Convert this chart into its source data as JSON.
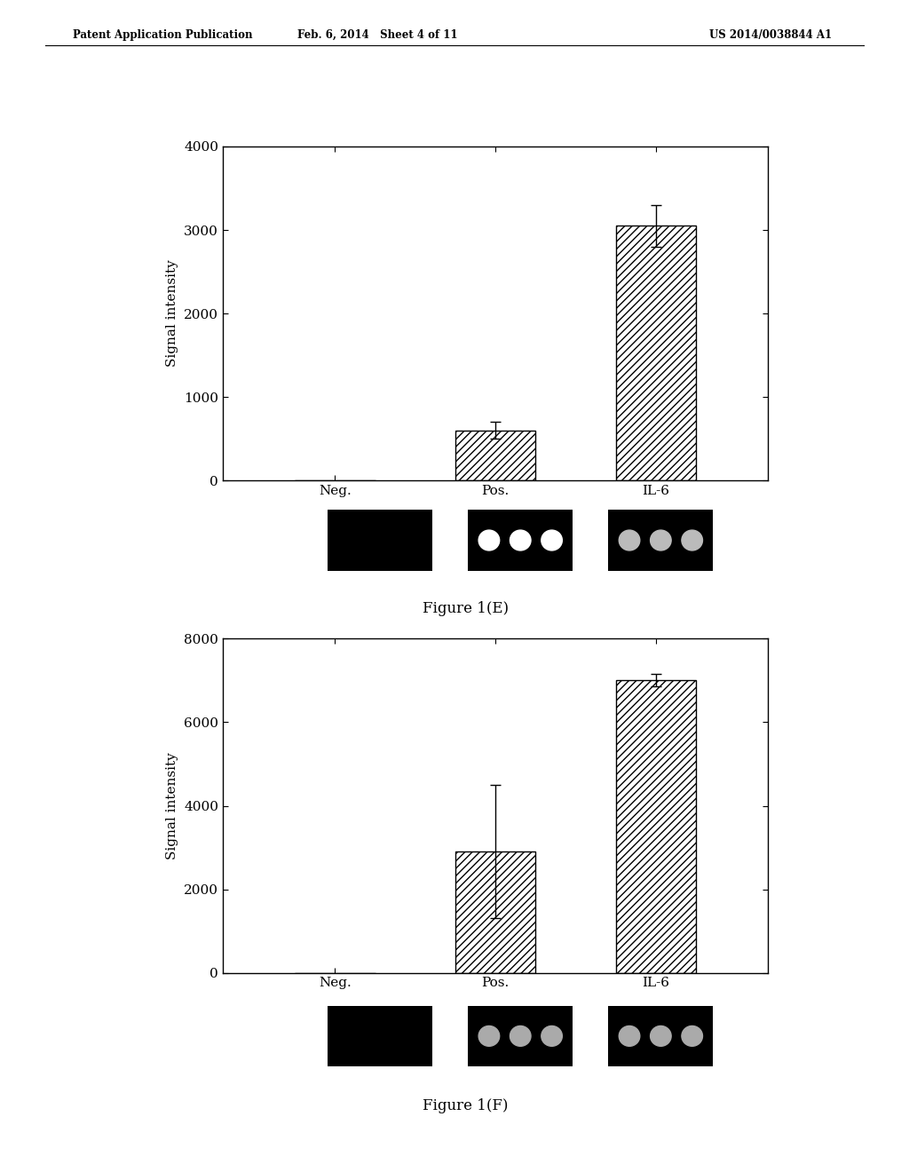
{
  "header_left": "Patent Application Publication",
  "header_mid": "Feb. 6, 2014   Sheet 4 of 11",
  "header_right": "US 2014/0038844 A1",
  "fig_E": {
    "title": "Figure 1(E)",
    "categories": [
      "Neg.",
      "Pos.",
      "IL-6"
    ],
    "values": [
      0,
      600,
      3050
    ],
    "errors": [
      0,
      100,
      250
    ],
    "ylim": [
      0,
      4000
    ],
    "yticks": [
      0,
      1000,
      2000,
      3000,
      4000
    ],
    "ylabel": "Signal intensity"
  },
  "fig_F": {
    "title": "Figure 1(F)",
    "categories": [
      "Neg.",
      "Pos.",
      "IL-6"
    ],
    "values": [
      0,
      2900,
      7000
    ],
    "errors": [
      0,
      1600,
      150
    ],
    "ylim": [
      0,
      8000
    ],
    "yticks": [
      0,
      2000,
      4000,
      6000,
      8000
    ],
    "ylabel": "Signal intensity"
  },
  "hatch_pattern": "////",
  "bar_color": "white",
  "bar_edgecolor": "black",
  "background_color": "white",
  "font_family": "DejaVu Serif"
}
